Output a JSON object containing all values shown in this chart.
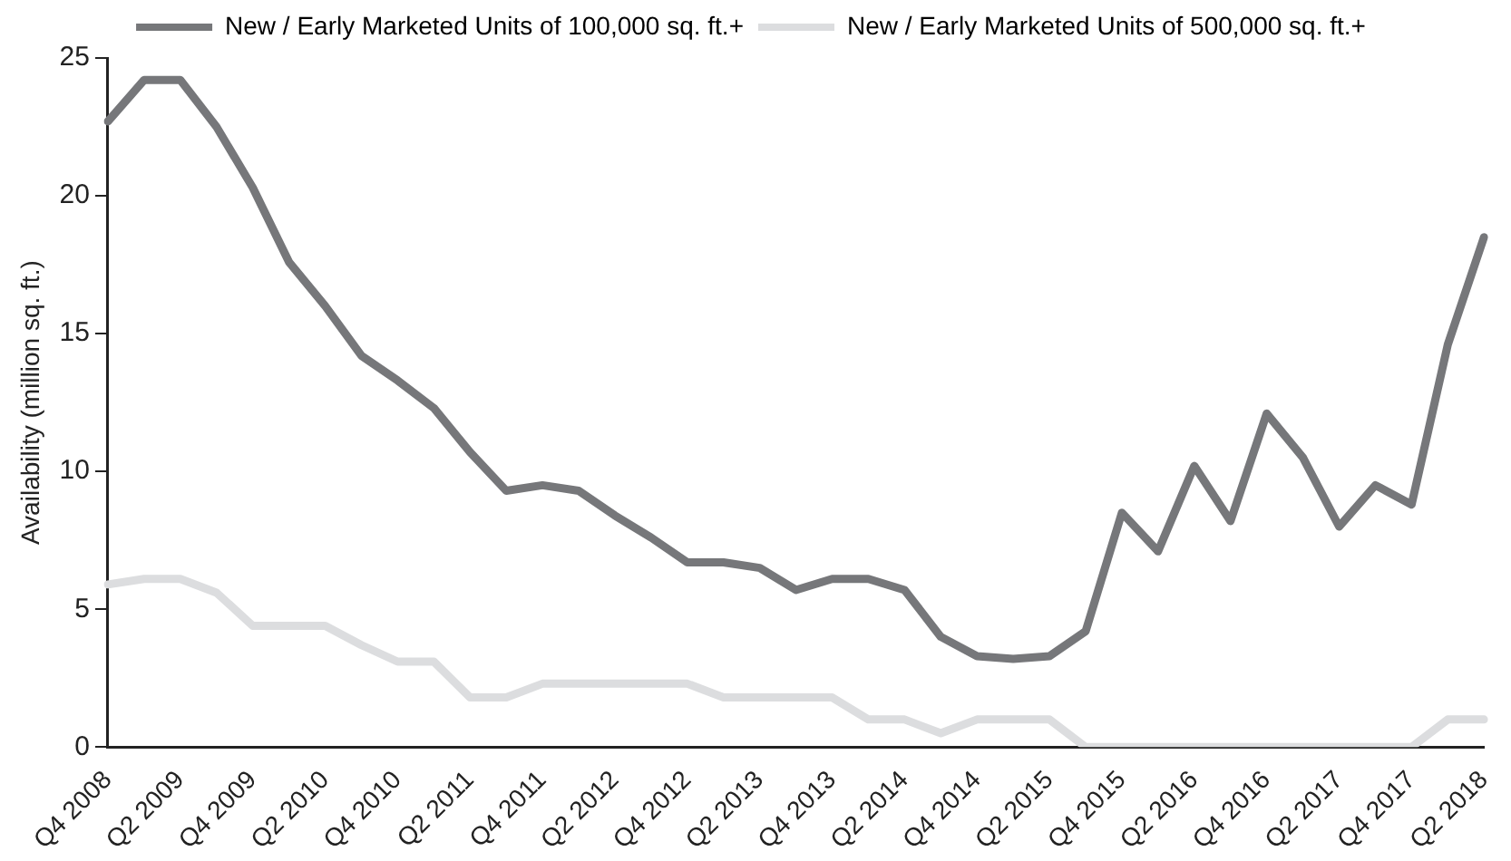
{
  "chart_data": {
    "type": "line",
    "ylabel": "Availability (million sq. ft.)",
    "categories": [
      "Q4 2008",
      null,
      "Q2 2009",
      null,
      "Q4 2009",
      null,
      "Q2 2010",
      null,
      "Q4 2010",
      null,
      "Q2 2011",
      null,
      "Q4 2011",
      null,
      "Q2 2012",
      null,
      "Q4 2012",
      null,
      "Q2 2013",
      null,
      "Q4 2013",
      null,
      "Q2 2014",
      null,
      "Q4 2014",
      null,
      "Q2 2015",
      null,
      "Q4 2015",
      null,
      "Q2 2016",
      null,
      "Q4 2016",
      null,
      "Q2 2017",
      null,
      "Q4 2017",
      null,
      "Q2 2018"
    ],
    "series": [
      {
        "name": "New / Early Marketed Units of 100,000 sq. ft.+",
        "color": "#76777a",
        "values": [
          22.7,
          24.2,
          24.2,
          22.5,
          20.3,
          17.6,
          16.0,
          14.2,
          13.3,
          12.3,
          10.7,
          9.3,
          9.5,
          9.3,
          8.4,
          7.6,
          6.7,
          6.7,
          6.5,
          5.7,
          6.1,
          6.1,
          5.7,
          4.0,
          3.3,
          3.2,
          3.3,
          4.2,
          8.5,
          7.1,
          10.2,
          8.2,
          12.1,
          10.5,
          8.0,
          9.5,
          8.8,
          14.6,
          18.5
        ]
      },
      {
        "name": "New / Early Marketed Units of 500,000 sq. ft.+",
        "color": "#dcdddf",
        "values": [
          5.9,
          6.1,
          6.1,
          5.6,
          4.4,
          4.4,
          4.4,
          3.7,
          3.1,
          3.1,
          1.8,
          1.8,
          2.3,
          2.3,
          2.3,
          2.3,
          2.3,
          1.8,
          1.8,
          1.8,
          1.8,
          1.0,
          1.0,
          0.5,
          1.0,
          1.0,
          1.0,
          0,
          0,
          0,
          0,
          0,
          0,
          0,
          0,
          0,
          0,
          1.0,
          1.0
        ]
      }
    ],
    "ylim": [
      0,
      25
    ],
    "yticks": [
      0,
      5,
      10,
      15,
      20,
      25
    ],
    "grid": false,
    "legend": "top",
    "marker": "none",
    "line_style": "solid"
  }
}
